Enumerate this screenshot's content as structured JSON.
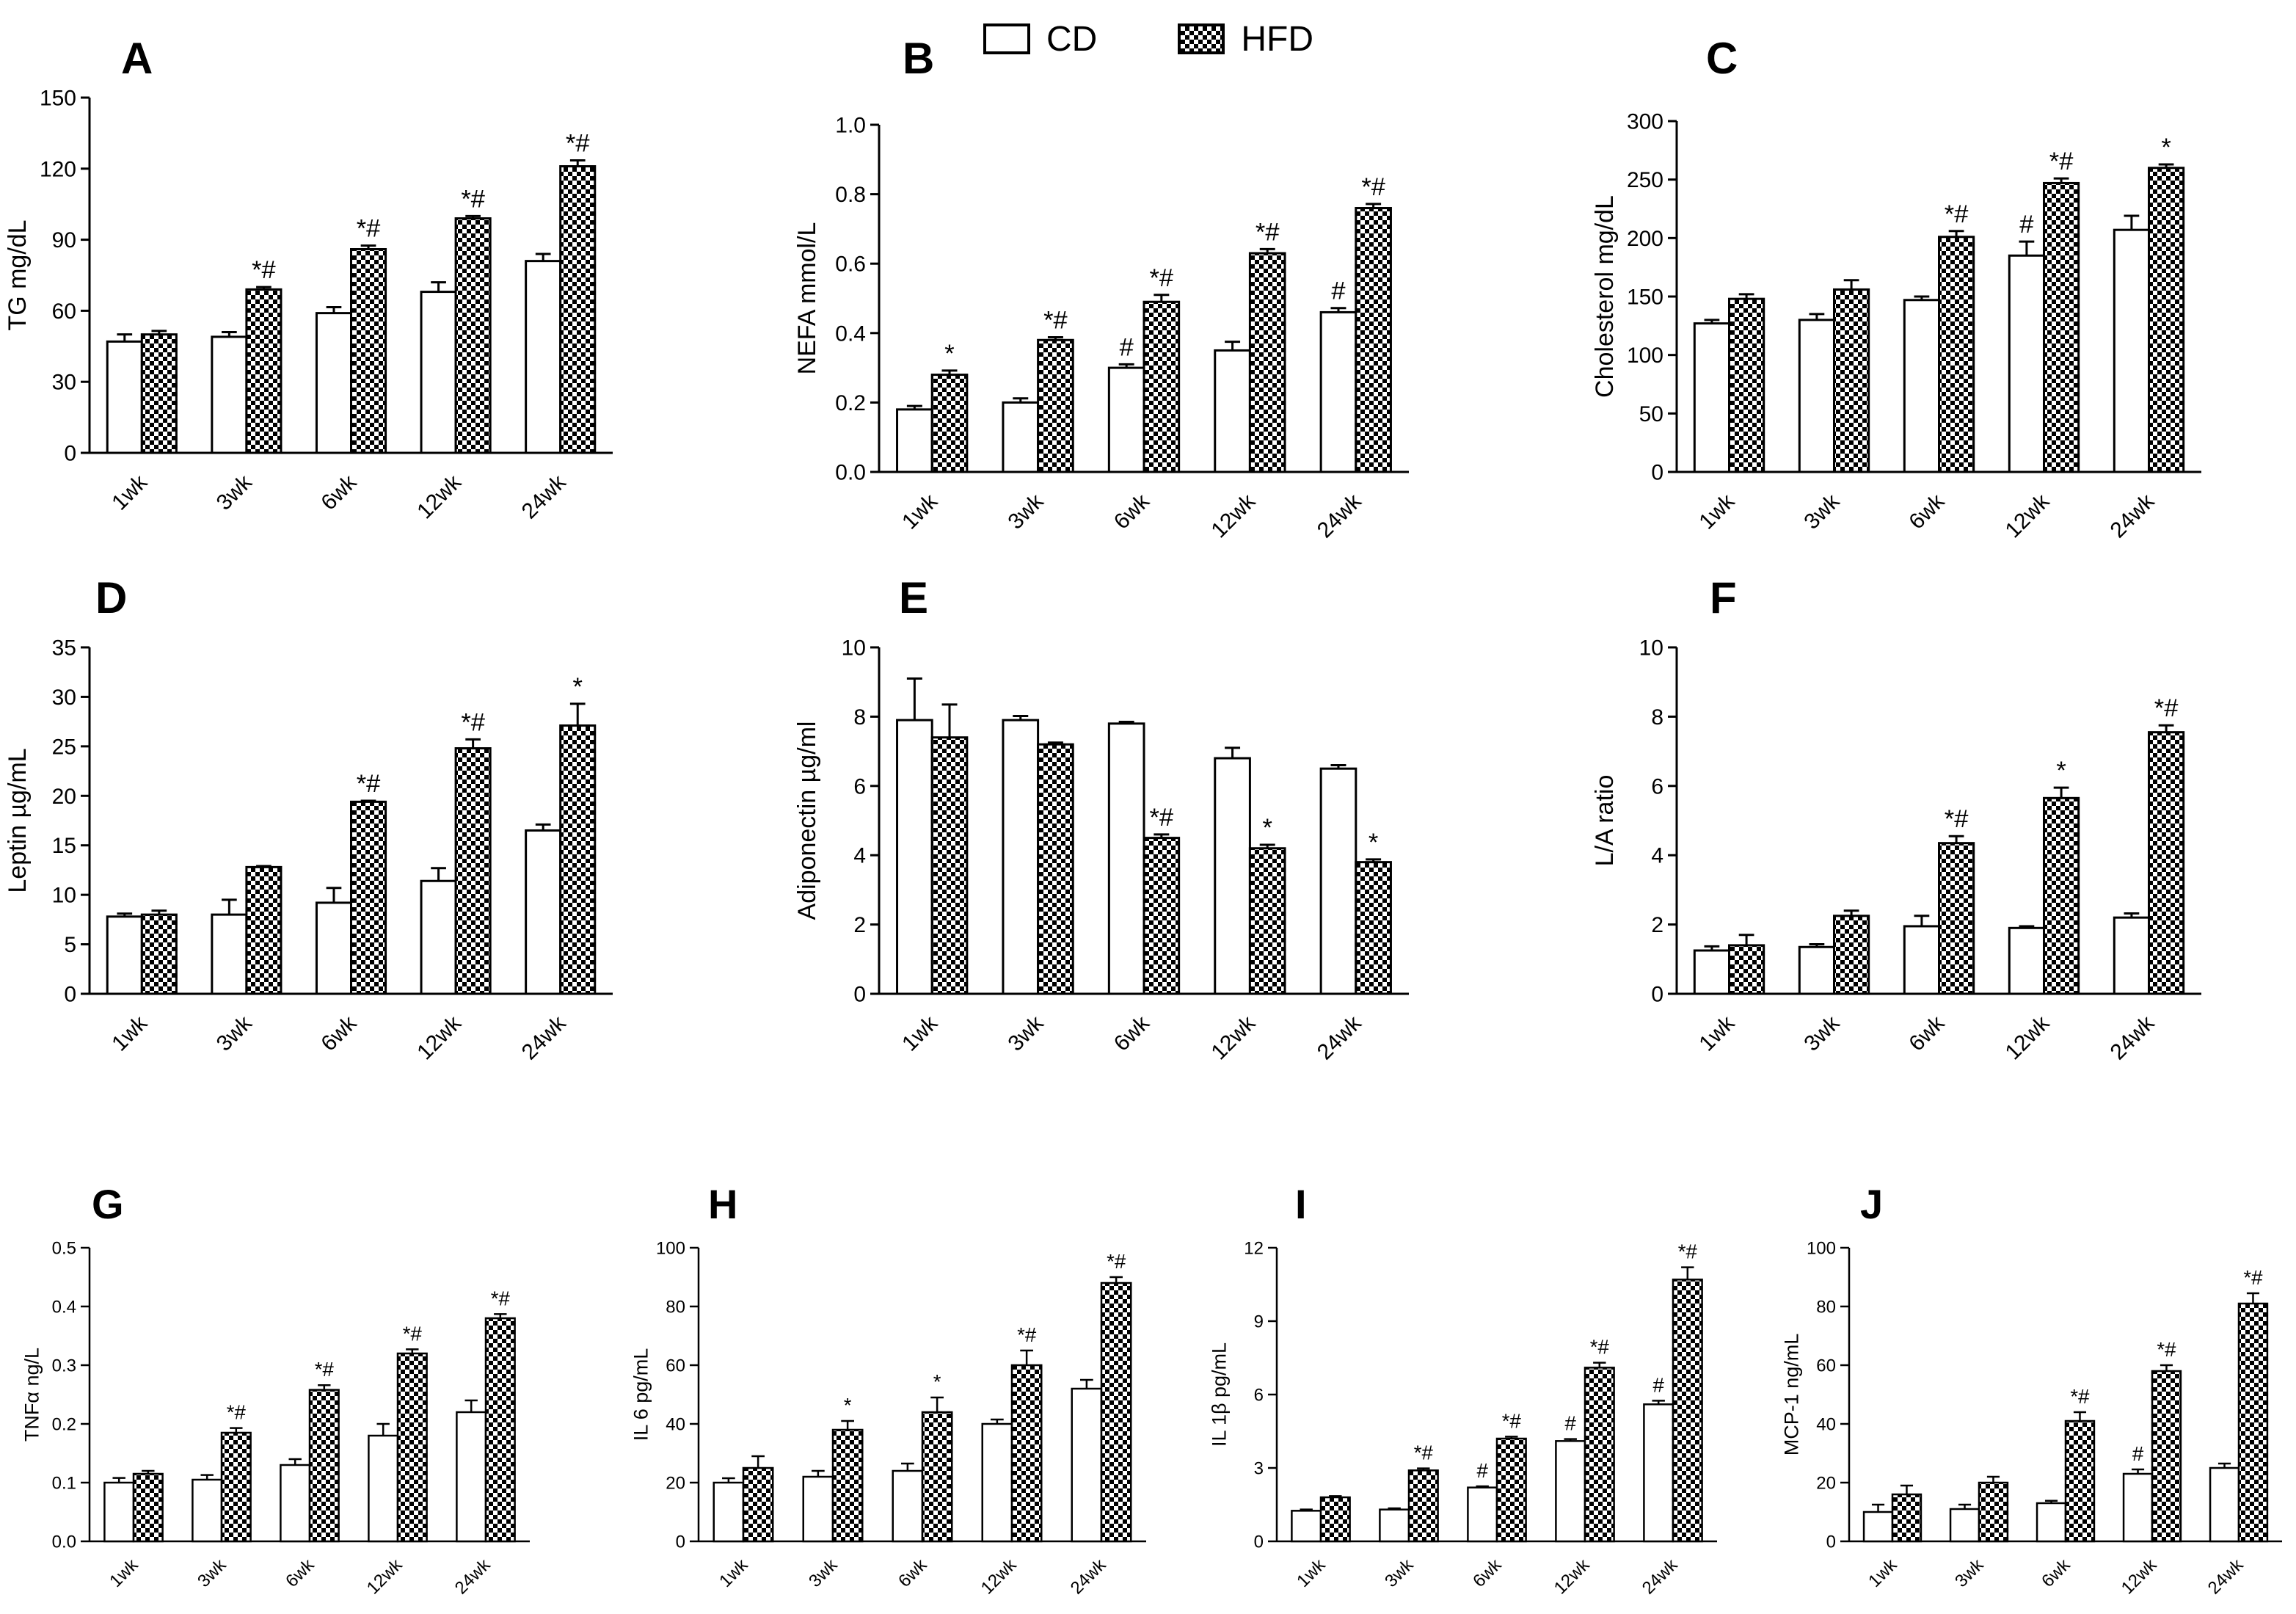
{
  "legend": {
    "cd_label": "CD",
    "hfd_label": "HFD"
  },
  "colors": {
    "cd_fill": "#ffffff",
    "hfd_pattern": "checkerboard-black",
    "axis": "#000000"
  },
  "chart_data": [
    {
      "panel_letter": "A",
      "type": "bar",
      "ylabel": "TG mg/dL",
      "ylim": [
        0,
        150
      ],
      "yticks": [
        0,
        30,
        60,
        90,
        120,
        150
      ],
      "categories": [
        "1wk",
        "3wk",
        "6wk",
        "12wk",
        "24wk"
      ],
      "series": [
        {
          "name": "CD",
          "values": [
            47,
            49,
            59,
            68,
            81
          ],
          "errors": [
            3,
            2,
            2.5,
            4,
            3
          ]
        },
        {
          "name": "HFD",
          "values": [
            50,
            69,
            86,
            99,
            121
          ],
          "errors": [
            1.5,
            1,
            1.5,
            1,
            2.5
          ]
        }
      ],
      "annotations": {
        "CD": [
          "",
          "",
          "",
          "",
          ""
        ],
        "HFD": [
          "",
          "*#",
          "*#",
          "*#",
          "*#"
        ]
      }
    },
    {
      "panel_letter": "B",
      "type": "bar",
      "ylabel": "NEFA mmol/L",
      "ylim": [
        0,
        1.0
      ],
      "yticks": [
        "0.0",
        "0.2",
        "0.4",
        "0.6",
        "0.8",
        "1.0"
      ],
      "categories": [
        "1wk",
        "3wk",
        "6wk",
        "12wk",
        "24wk"
      ],
      "series": [
        {
          "name": "CD",
          "values": [
            0.18,
            0.2,
            0.3,
            0.35,
            0.46
          ],
          "errors": [
            0.01,
            0.012,
            0.01,
            0.025,
            0.012
          ]
        },
        {
          "name": "HFD",
          "values": [
            0.28,
            0.38,
            0.49,
            0.63,
            0.76
          ],
          "errors": [
            0.012,
            0.008,
            0.02,
            0.012,
            0.012
          ]
        }
      ],
      "annotations": {
        "CD": [
          "",
          "",
          "#",
          "",
          "#"
        ],
        "HFD": [
          "*",
          "*#",
          "*#",
          "*#",
          "*#"
        ]
      }
    },
    {
      "panel_letter": "C",
      "type": "bar",
      "ylabel": "Cholesterol mg/dL",
      "ylim": [
        0,
        300
      ],
      "yticks": [
        0,
        50,
        100,
        150,
        200,
        250,
        300
      ],
      "categories": [
        "1wk",
        "3wk",
        "6wk",
        "12wk",
        "24wk"
      ],
      "series": [
        {
          "name": "CD",
          "values": [
            127,
            130,
            147,
            185,
            207
          ],
          "errors": [
            3,
            5,
            3,
            12,
            12
          ]
        },
        {
          "name": "HFD",
          "values": [
            148,
            156,
            201,
            247,
            260
          ],
          "errors": [
            4,
            8,
            5,
            4,
            3
          ]
        }
      ],
      "annotations": {
        "CD": [
          "",
          "",
          "",
          "#",
          ""
        ],
        "HFD": [
          "",
          "",
          "*#",
          "*#",
          "*"
        ]
      }
    },
    {
      "panel_letter": "D",
      "type": "bar",
      "ylabel": "Leptin µg/mL",
      "ylim": [
        0,
        35
      ],
      "yticks": [
        0,
        5,
        10,
        15,
        20,
        25,
        30,
        35
      ],
      "categories": [
        "1wk",
        "3wk",
        "6wk",
        "12wk",
        "24wk"
      ],
      "series": [
        {
          "name": "CD",
          "values": [
            7.8,
            8,
            9.2,
            11.4,
            16.5
          ],
          "errors": [
            0.3,
            1.5,
            1.5,
            1.3,
            0.6
          ]
        },
        {
          "name": "HFD",
          "values": [
            8,
            12.8,
            19.4,
            24.8,
            27.1
          ],
          "errors": [
            0.4,
            0.1,
            0.1,
            0.9,
            2.2
          ]
        }
      ],
      "annotations": {
        "CD": [
          "",
          "",
          "",
          "",
          ""
        ],
        "HFD": [
          "",
          "",
          "*#",
          "*#",
          "*"
        ]
      }
    },
    {
      "panel_letter": "E",
      "type": "bar",
      "ylabel": "Adiponectin µg/ml",
      "ylim": [
        0,
        10
      ],
      "yticks": [
        0,
        2,
        4,
        6,
        8,
        10
      ],
      "categories": [
        "1wk",
        "3wk",
        "6wk",
        "12wk",
        "24wk"
      ],
      "series": [
        {
          "name": "CD",
          "values": [
            7.9,
            7.9,
            7.8,
            6.8,
            6.5
          ],
          "errors": [
            1.2,
            0.12,
            0.05,
            0.3,
            0.1
          ]
        },
        {
          "name": "HFD",
          "values": [
            7.4,
            7.2,
            4.5,
            4.2,
            3.8
          ],
          "errors": [
            0.95,
            0.05,
            0.1,
            0.1,
            0.08
          ]
        }
      ],
      "annotations": {
        "CD": [
          "",
          "",
          "",
          "",
          ""
        ],
        "HFD": [
          "",
          "",
          "*#",
          "*",
          "*"
        ]
      }
    },
    {
      "panel_letter": "F",
      "type": "bar",
      "ylabel": "L/A ratio",
      "ylim": [
        0,
        10
      ],
      "yticks": [
        0,
        2,
        4,
        6,
        8,
        10
      ],
      "categories": [
        "1wk",
        "3wk",
        "6wk",
        "12wk",
        "24wk"
      ],
      "series": [
        {
          "name": "CD",
          "values": [
            1.25,
            1.35,
            1.95,
            1.9,
            2.2
          ],
          "errors": [
            0.12,
            0.08,
            0.3,
            0.05,
            0.12
          ]
        },
        {
          "name": "HFD",
          "values": [
            1.4,
            2.25,
            4.35,
            5.65,
            7.55
          ],
          "errors": [
            0.3,
            0.15,
            0.2,
            0.3,
            0.2
          ]
        }
      ],
      "annotations": {
        "CD": [
          "",
          "",
          "",
          "",
          ""
        ],
        "HFD": [
          "",
          "",
          "*#",
          "*",
          "*#"
        ]
      }
    },
    {
      "panel_letter": "G",
      "type": "bar",
      "ylabel": "TNFα ng/L",
      "ylim": [
        0,
        0.5
      ],
      "yticks": [
        "0.0",
        "0.1",
        "0.2",
        "0.3",
        "0.4",
        "0.5"
      ],
      "categories": [
        "1wk",
        "3wk",
        "6wk",
        "12wk",
        "24wk"
      ],
      "series": [
        {
          "name": "CD",
          "values": [
            0.1,
            0.105,
            0.13,
            0.18,
            0.22
          ],
          "errors": [
            0.008,
            0.008,
            0.01,
            0.02,
            0.02
          ]
        },
        {
          "name": "HFD",
          "values": [
            0.115,
            0.185,
            0.258,
            0.32,
            0.38
          ],
          "errors": [
            0.005,
            0.008,
            0.008,
            0.007,
            0.007
          ]
        }
      ],
      "annotations": {
        "CD": [
          "",
          "",
          "",
          "",
          ""
        ],
        "HFD": [
          "",
          "*#",
          "*#",
          "*#",
          "*#"
        ]
      }
    },
    {
      "panel_letter": "H",
      "type": "bar",
      "ylabel": "IL 6 pg/mL",
      "ylim": [
        0,
        100
      ],
      "yticks": [
        0,
        20,
        40,
        60,
        80,
        100
      ],
      "categories": [
        "1wk",
        "3wk",
        "6wk",
        "12wk",
        "24wk"
      ],
      "series": [
        {
          "name": "CD",
          "values": [
            20,
            22,
            24,
            40,
            52
          ],
          "errors": [
            1.5,
            2,
            2.5,
            1.5,
            3
          ]
        },
        {
          "name": "HFD",
          "values": [
            25,
            38,
            44,
            60,
            88
          ],
          "errors": [
            4,
            3,
            5,
            5,
            2
          ]
        }
      ],
      "annotations": {
        "CD": [
          "",
          "",
          "",
          "",
          ""
        ],
        "HFD": [
          "",
          "*",
          "*",
          "*#",
          "*#"
        ]
      }
    },
    {
      "panel_letter": "I",
      "type": "bar",
      "ylabel": "IL 1β pg/mL",
      "ylim": [
        0,
        12
      ],
      "yticks": [
        0,
        3,
        6,
        9,
        12
      ],
      "categories": [
        "1wk",
        "3wk",
        "6wk",
        "12wk",
        "24wk"
      ],
      "series": [
        {
          "name": "CD",
          "values": [
            1.25,
            1.3,
            2.2,
            4.1,
            5.6
          ],
          "errors": [
            0.05,
            0.05,
            0.05,
            0.08,
            0.15
          ]
        },
        {
          "name": "HFD",
          "values": [
            1.8,
            2.9,
            4.2,
            7.1,
            10.7
          ],
          "errors": [
            0.05,
            0.08,
            0.08,
            0.2,
            0.5
          ]
        }
      ],
      "annotations": {
        "CD": [
          "",
          "",
          "#",
          "#",
          "#"
        ],
        "HFD": [
          "",
          "*#",
          "*#",
          "*#",
          "*#"
        ]
      }
    },
    {
      "panel_letter": "J",
      "type": "bar",
      "ylabel": "MCP-1 ng/mL",
      "ylim": [
        0,
        100
      ],
      "yticks": [
        0,
        20,
        40,
        60,
        80,
        100
      ],
      "categories": [
        "1wk",
        "3wk",
        "6wk",
        "12wk",
        "24wk"
      ],
      "series": [
        {
          "name": "CD",
          "values": [
            10,
            11,
            13,
            23,
            25
          ],
          "errors": [
            2.5,
            1.5,
            0.8,
            1.5,
            1.5
          ]
        },
        {
          "name": "HFD",
          "values": [
            16,
            20,
            41,
            58,
            81
          ],
          "errors": [
            3,
            2,
            3,
            2,
            3.5
          ]
        }
      ],
      "annotations": {
        "CD": [
          "",
          "",
          "",
          "#",
          ""
        ],
        "HFD": [
          "",
          "",
          "*#",
          "*#",
          "*#"
        ]
      }
    }
  ]
}
